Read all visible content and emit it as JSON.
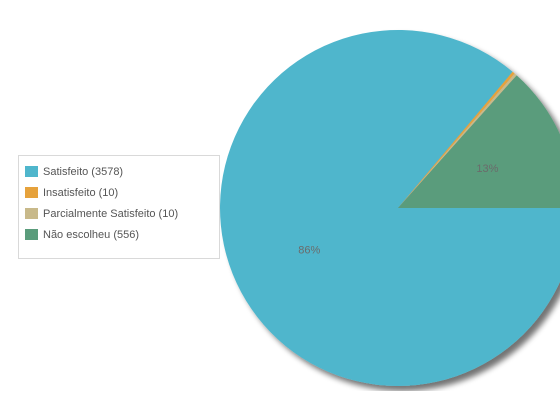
{
  "chart_data": {
    "type": "pie",
    "title": "",
    "legend_placement": "left",
    "series": [
      {
        "name": "Satisfeito",
        "values": [
          3578,
          10,
          10,
          556
        ]
      }
    ],
    "categories": [
      "Satisfeito",
      "Insatisfeito",
      "Parcialmente Satisfeito",
      "Não escolheu"
    ],
    "legend_labels": [
      "Satisfeito (3578)",
      "Insatisfeito (10)",
      "Parcialmente Satisfeito (10)",
      "Não escolheu (556)"
    ],
    "slice_labels": [
      "86%",
      "",
      "",
      "13%"
    ],
    "colors": [
      "#4fb6cc",
      "#e6a23c",
      "#c8b98a",
      "#5a9c7b"
    ]
  }
}
